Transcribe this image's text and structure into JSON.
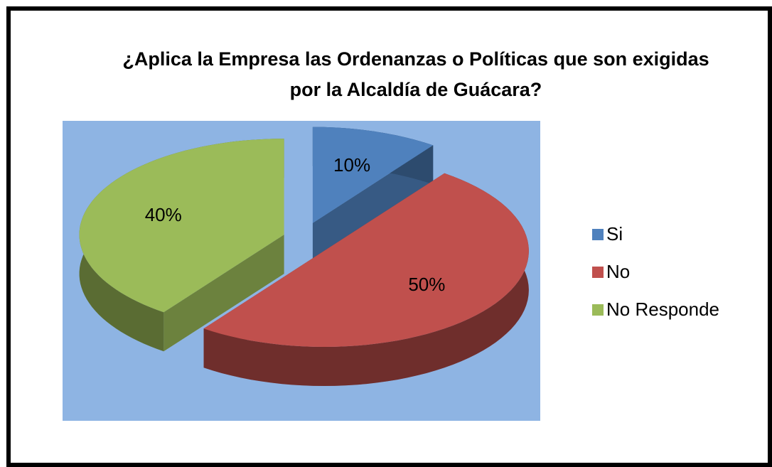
{
  "chart_data": {
    "type": "pie",
    "title": "¿Aplica la Empresa las Ordenanzas o Políticas que son exigidas por la Alcaldía de Guácara?",
    "categories": [
      "Si",
      "No",
      "No Responde"
    ],
    "values": [
      10,
      50,
      40
    ],
    "value_labels": [
      "10%",
      "50%",
      "40%"
    ],
    "colors": [
      "#4f81bd",
      "#c0504d",
      "#9bbb59"
    ],
    "background": "#8eb4e3",
    "legend": "right"
  }
}
